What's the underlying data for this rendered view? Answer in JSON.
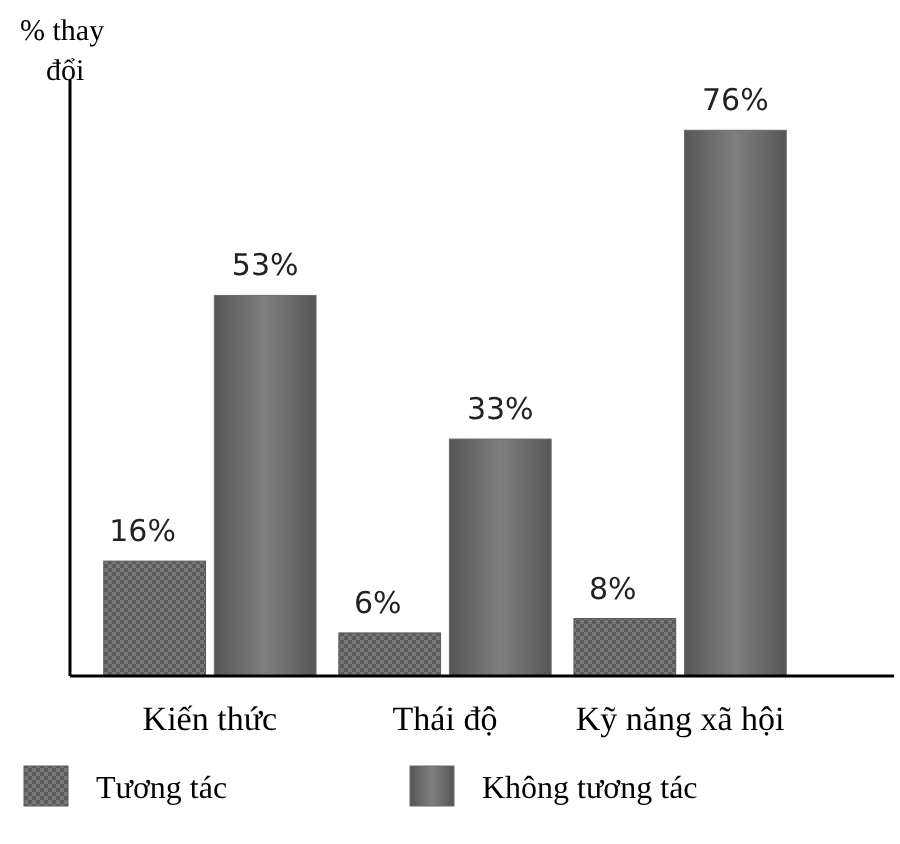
{
  "chart_data": {
    "type": "bar",
    "ylabel": "% thay đổi",
    "categories": [
      "Kiến thức",
      "Thái độ",
      "Kỹ năng xã hội"
    ],
    "series": [
      {
        "name": "Tương tác",
        "color": "#5a5a5a",
        "values": [
          16,
          6,
          8
        ],
        "value_labels": [
          "16%",
          "6%",
          "8%"
        ]
      },
      {
        "name": "Không tương tác",
        "color": "#6a6a6a",
        "values": [
          53,
          33,
          76
        ],
        "value_labels": [
          "53%",
          "33%",
          "76%"
        ]
      }
    ],
    "ylim": [
      0,
      83
    ],
    "legend": "bottom"
  }
}
